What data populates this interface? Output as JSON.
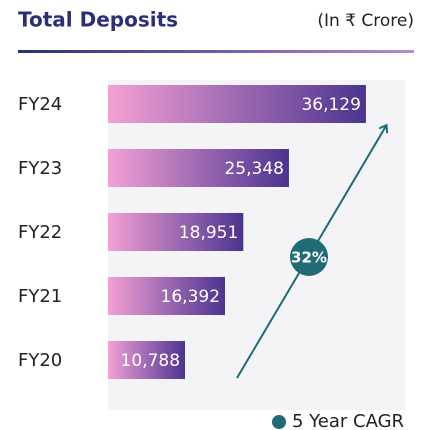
{
  "chart_data": {
    "type": "hbar",
    "title": "Total Deposits",
    "subtitle": "(In ₹ Crore)",
    "categories": [
      "FY24",
      "FY23",
      "FY22",
      "FY21",
      "FY20"
    ],
    "values": [
      36129,
      25348,
      18951,
      16392,
      10788
    ],
    "value_labels": [
      "36,129",
      "25,348",
      "18,951",
      "16,392",
      "10,788"
    ],
    "colors": [
      "#f3a0d4",
      "#4b3490"
    ],
    "xlim": [
      0,
      41600
    ],
    "annotation": "32%",
    "annotation_color": "#1f6c77",
    "legend": "5 Year CAGR"
  }
}
